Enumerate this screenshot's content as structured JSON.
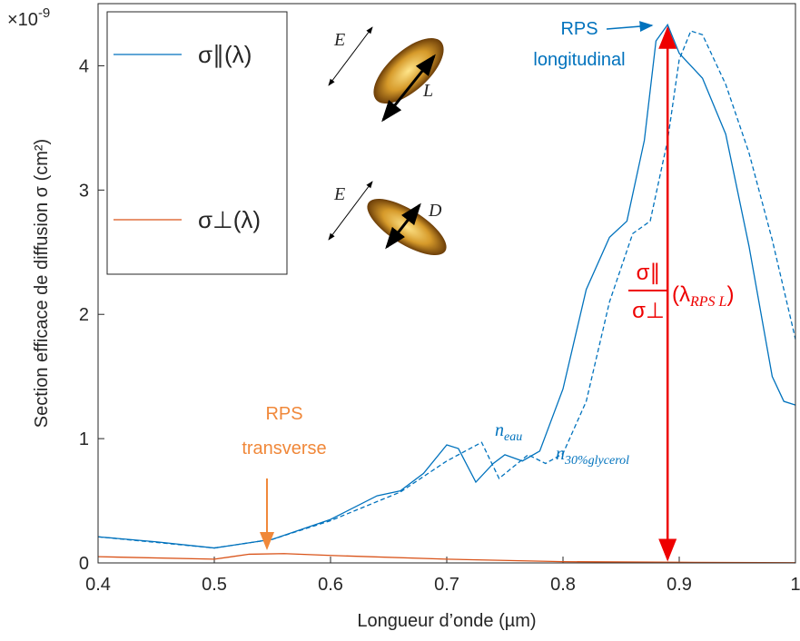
{
  "chart_data": {
    "type": "line",
    "xlabel": "Longueur d’onde (µm)",
    "ylabel": "Section efficace de diffusion σ (cm²)",
    "y_multiplier": {
      "base": "×10",
      "exponent": "-9"
    },
    "xlim": [
      0.4,
      1
    ],
    "ylim": [
      0,
      4.5
    ],
    "xticks": [
      0.4,
      0.5,
      0.6,
      0.7,
      0.8,
      0.9,
      1
    ],
    "yticks": [
      0,
      1,
      2,
      3,
      4
    ],
    "series": [
      {
        "name": "σ∥(λ)",
        "color": "#0072bd",
        "dash": false,
        "x": [
          0.4,
          0.45,
          0.5,
          0.55,
          0.6,
          0.64,
          0.66,
          0.68,
          0.7,
          0.71,
          0.725,
          0.74,
          0.75,
          0.765,
          0.78,
          0.8,
          0.82,
          0.84,
          0.855,
          0.87,
          0.88,
          0.89,
          0.9,
          0.92,
          0.94,
          0.96,
          0.98,
          0.99,
          1.0
        ],
        "values": [
          0.21,
          0.17,
          0.12,
          0.19,
          0.35,
          0.54,
          0.58,
          0.72,
          0.95,
          0.92,
          0.65,
          0.8,
          0.87,
          0.82,
          0.9,
          1.4,
          2.2,
          2.62,
          2.75,
          3.4,
          4.2,
          4.33,
          4.1,
          3.9,
          3.45,
          2.55,
          1.5,
          1.3,
          1.27
        ]
      },
      {
        "color": "#0072bd",
        "dash": true,
        "x": [
          0.4,
          0.5,
          0.55,
          0.6,
          0.66,
          0.7,
          0.73,
          0.745,
          0.77,
          0.785,
          0.8,
          0.82,
          0.84,
          0.86,
          0.875,
          0.89,
          0.9,
          0.91,
          0.92,
          0.94,
          0.96,
          0.98,
          1.0
        ],
        "values": [
          0.21,
          0.12,
          0.19,
          0.34,
          0.57,
          0.82,
          0.97,
          0.68,
          0.87,
          0.8,
          0.88,
          1.3,
          2.1,
          2.65,
          2.75,
          3.4,
          4.05,
          4.28,
          4.25,
          3.85,
          3.3,
          2.6,
          1.8
        ]
      },
      {
        "name": "σ⊥(λ)",
        "color": "#d95319",
        "dash": false,
        "x": [
          0.4,
          0.5,
          0.53,
          0.56,
          0.6,
          0.7,
          0.8,
          0.9,
          1.0
        ],
        "values": [
          0.05,
          0.03,
          0.07,
          0.075,
          0.06,
          0.03,
          0.01,
          0.005,
          0.002
        ]
      }
    ],
    "annotations": {
      "rps_long": [
        "RPS",
        "longitudinal"
      ],
      "rps_trans": [
        "RPS",
        "transverse"
      ],
      "n_eau": {
        "base": "n",
        "sub": "eau"
      },
      "n_gly": {
        "base": "n",
        "sub": "30%glycerol"
      },
      "ratio": {
        "num": "σ∥",
        "den": "σ⊥",
        "open": "(λ",
        "sub": "RPS L",
        "close": ")"
      }
    },
    "legend_figure": {
      "e_label": "E",
      "l_label": "L",
      "d_label": "D"
    }
  }
}
